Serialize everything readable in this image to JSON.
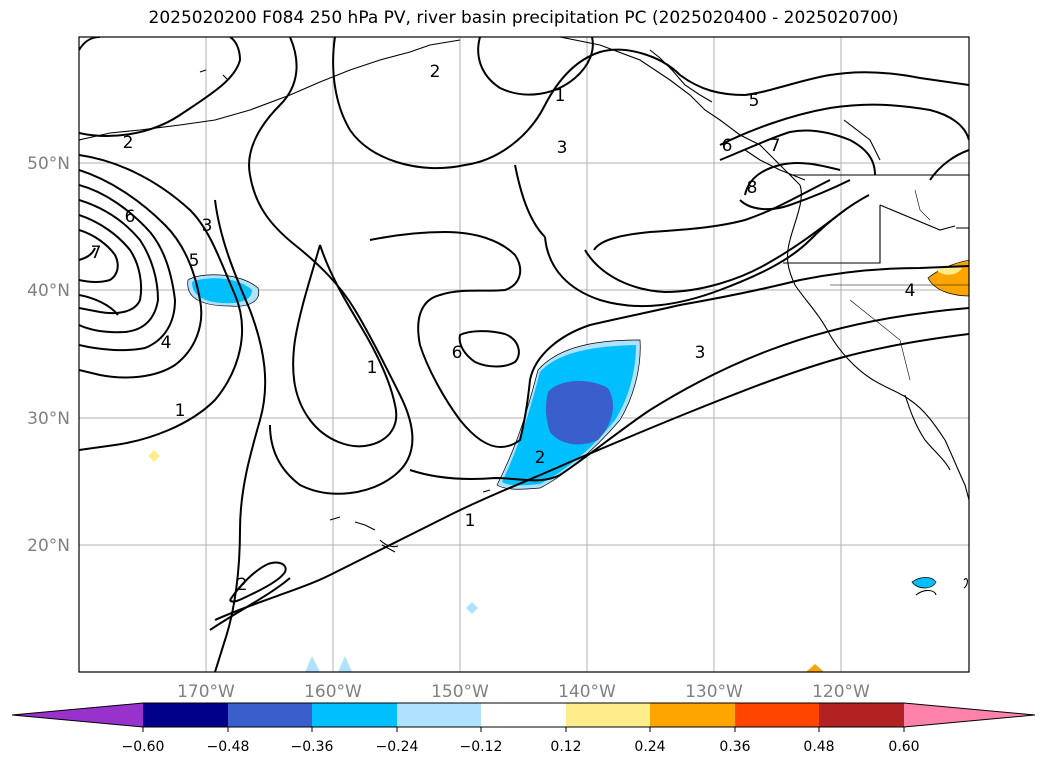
{
  "title": "2025020200 F084 250 hPa PV, river basin precipitation PC (2025020400 - 2025020700)",
  "map": {
    "lon_ticks": [
      "170°W",
      "160°W",
      "150°W",
      "140°W",
      "130°W",
      "120°W"
    ],
    "lat_ticks": [
      "50°N",
      "40°N",
      "30°N",
      "20°N"
    ],
    "contour_labels": [
      "2",
      "2",
      "1",
      "3",
      "5",
      "6",
      "7",
      "8",
      "6",
      "3",
      "5",
      "7",
      "4",
      "1",
      "1",
      "6",
      "3",
      "2",
      "1",
      "2",
      "4"
    ]
  },
  "colorbar": {
    "colors": [
      "#9932cc",
      "#00008b",
      "#3a5fcd",
      "#00bfff",
      "#b0e2ff",
      "#ffffff",
      "#ffec8b",
      "#ffa500",
      "#ff4500",
      "#b22222",
      "#ff82ab"
    ],
    "ticks": [
      "−0.60",
      "−0.48",
      "−0.36",
      "−0.24",
      "−0.12",
      "0.12",
      "0.24",
      "0.36",
      "0.48",
      "0.60"
    ]
  }
}
